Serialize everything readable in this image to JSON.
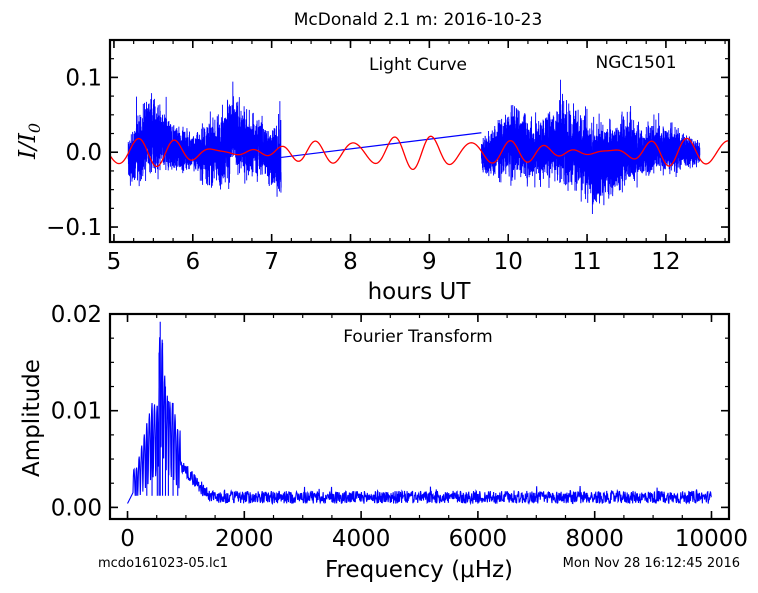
{
  "page": {
    "title": "McDonald 2.1 m:  2016-10-23",
    "filename": "mcdo161023-05.lc1",
    "timestamp": "Mon Nov 28 16:12:45 2016"
  },
  "chart_data": [
    {
      "type": "line",
      "title": "Light Curve",
      "object_label": "NGC1501",
      "xlabel": "hours UT",
      "ylabel": "I/I0",
      "xlim": [
        4.95,
        12.8
      ],
      "ylim": [
        -0.12,
        0.15
      ],
      "xticks": [
        5,
        6,
        7,
        8,
        9,
        10,
        11,
        12
      ],
      "xtick_labels": [
        "5",
        "6",
        "7",
        "8",
        "9",
        "10",
        "11",
        "12"
      ],
      "yticks": [
        -0.1,
        0.0,
        0.1
      ],
      "ytick_labels": [
        "−0.1",
        "0.0",
        "0.1"
      ],
      "grid": false,
      "colors": {
        "data": "#0000ff",
        "model": "#ff0000"
      },
      "data_segments": [
        {
          "x_start": 5.18,
          "x_end": 7.12,
          "envelope_upper": [
            [
              5.2,
              0.03
            ],
            [
              5.4,
              0.07
            ],
            [
              5.5,
              0.09
            ],
            [
              5.6,
              0.06
            ],
            [
              5.8,
              0.04
            ],
            [
              6.0,
              0.03
            ],
            [
              6.2,
              0.05
            ],
            [
              6.35,
              0.06
            ],
            [
              6.5,
              0.09
            ],
            [
              6.7,
              0.06
            ],
            [
              6.9,
              0.05
            ],
            [
              7.1,
              0.04
            ]
          ],
          "envelope_lower": [
            [
              5.2,
              -0.05
            ],
            [
              5.4,
              -0.04
            ],
            [
              5.5,
              -0.04
            ],
            [
              5.6,
              -0.04
            ],
            [
              5.8,
              -0.03
            ],
            [
              6.0,
              -0.03
            ],
            [
              6.2,
              -0.05
            ],
            [
              6.35,
              -0.06
            ],
            [
              6.5,
              -0.04
            ],
            [
              6.7,
              -0.04
            ],
            [
              6.9,
              -0.04
            ],
            [
              7.1,
              -0.07
            ]
          ]
        },
        {
          "x_start": 9.66,
          "x_end": 12.43,
          "envelope_upper": [
            [
              9.7,
              0.03
            ],
            [
              9.9,
              0.05
            ],
            [
              10.1,
              0.07
            ],
            [
              10.3,
              0.05
            ],
            [
              10.5,
              0.06
            ],
            [
              10.7,
              0.08
            ],
            [
              10.9,
              0.06
            ],
            [
              11.1,
              0.05
            ],
            [
              11.3,
              0.05
            ],
            [
              11.5,
              0.06
            ],
            [
              11.7,
              0.04
            ],
            [
              11.9,
              0.04
            ],
            [
              12.1,
              0.04
            ],
            [
              12.4,
              0.02
            ]
          ],
          "envelope_lower": [
            [
              9.7,
              -0.04
            ],
            [
              9.9,
              -0.04
            ],
            [
              10.1,
              -0.04
            ],
            [
              10.3,
              -0.05
            ],
            [
              10.5,
              -0.04
            ],
            [
              10.7,
              -0.05
            ],
            [
              10.9,
              -0.06
            ],
            [
              11.1,
              -0.08
            ],
            [
              11.3,
              -0.07
            ],
            [
              11.5,
              -0.05
            ],
            [
              11.7,
              -0.04
            ],
            [
              11.9,
              -0.03
            ],
            [
              12.1,
              -0.03
            ],
            [
              12.4,
              -0.02
            ]
          ]
        }
      ],
      "gap_connector": [
        [
          7.12,
          -0.007
        ],
        [
          9.66,
          0.026
        ]
      ],
      "model_curve": {
        "x_range": [
          4.95,
          12.8
        ],
        "components": [
          {
            "amplitude": 0.011,
            "period_hours": 0.47,
            "phase": 0.3
          },
          {
            "amplitude": 0.008,
            "period_hours": 0.53,
            "phase": 1.1
          },
          {
            "amplitude": 0.004,
            "period_hours": 0.36,
            "phase": 2.0
          }
        ]
      }
    },
    {
      "type": "line",
      "title": "Fourier Transform",
      "xlabel": "Frequency (μHz)",
      "ylabel": "Amplitude",
      "xlim": [
        -300,
        10300
      ],
      "ylim": [
        -0.0012,
        0.02
      ],
      "xticks": [
        0,
        2000,
        4000,
        6000,
        8000,
        10000
      ],
      "xtick_labels": [
        "0",
        "2000",
        "4000",
        "6000",
        "8000",
        "10000"
      ],
      "yticks": [
        0.0,
        0.01,
        0.02
      ],
      "ytick_labels": [
        "0.00",
        "0.01",
        "0.02"
      ],
      "grid": false,
      "color": "#0000ff",
      "peaks": [
        {
          "x": 150,
          "y": 0.004
        },
        {
          "x": 330,
          "y": 0.0087
        },
        {
          "x": 420,
          "y": 0.0108
        },
        {
          "x": 510,
          "y": 0.0105
        },
        {
          "x": 540,
          "y": 0.016
        },
        {
          "x": 560,
          "y": 0.0192
        },
        {
          "x": 600,
          "y": 0.017
        },
        {
          "x": 650,
          "y": 0.0125
        },
        {
          "x": 700,
          "y": 0.011
        },
        {
          "x": 780,
          "y": 0.0108
        },
        {
          "x": 860,
          "y": 0.008
        }
      ],
      "noise_floor": 0.0011
    }
  ]
}
